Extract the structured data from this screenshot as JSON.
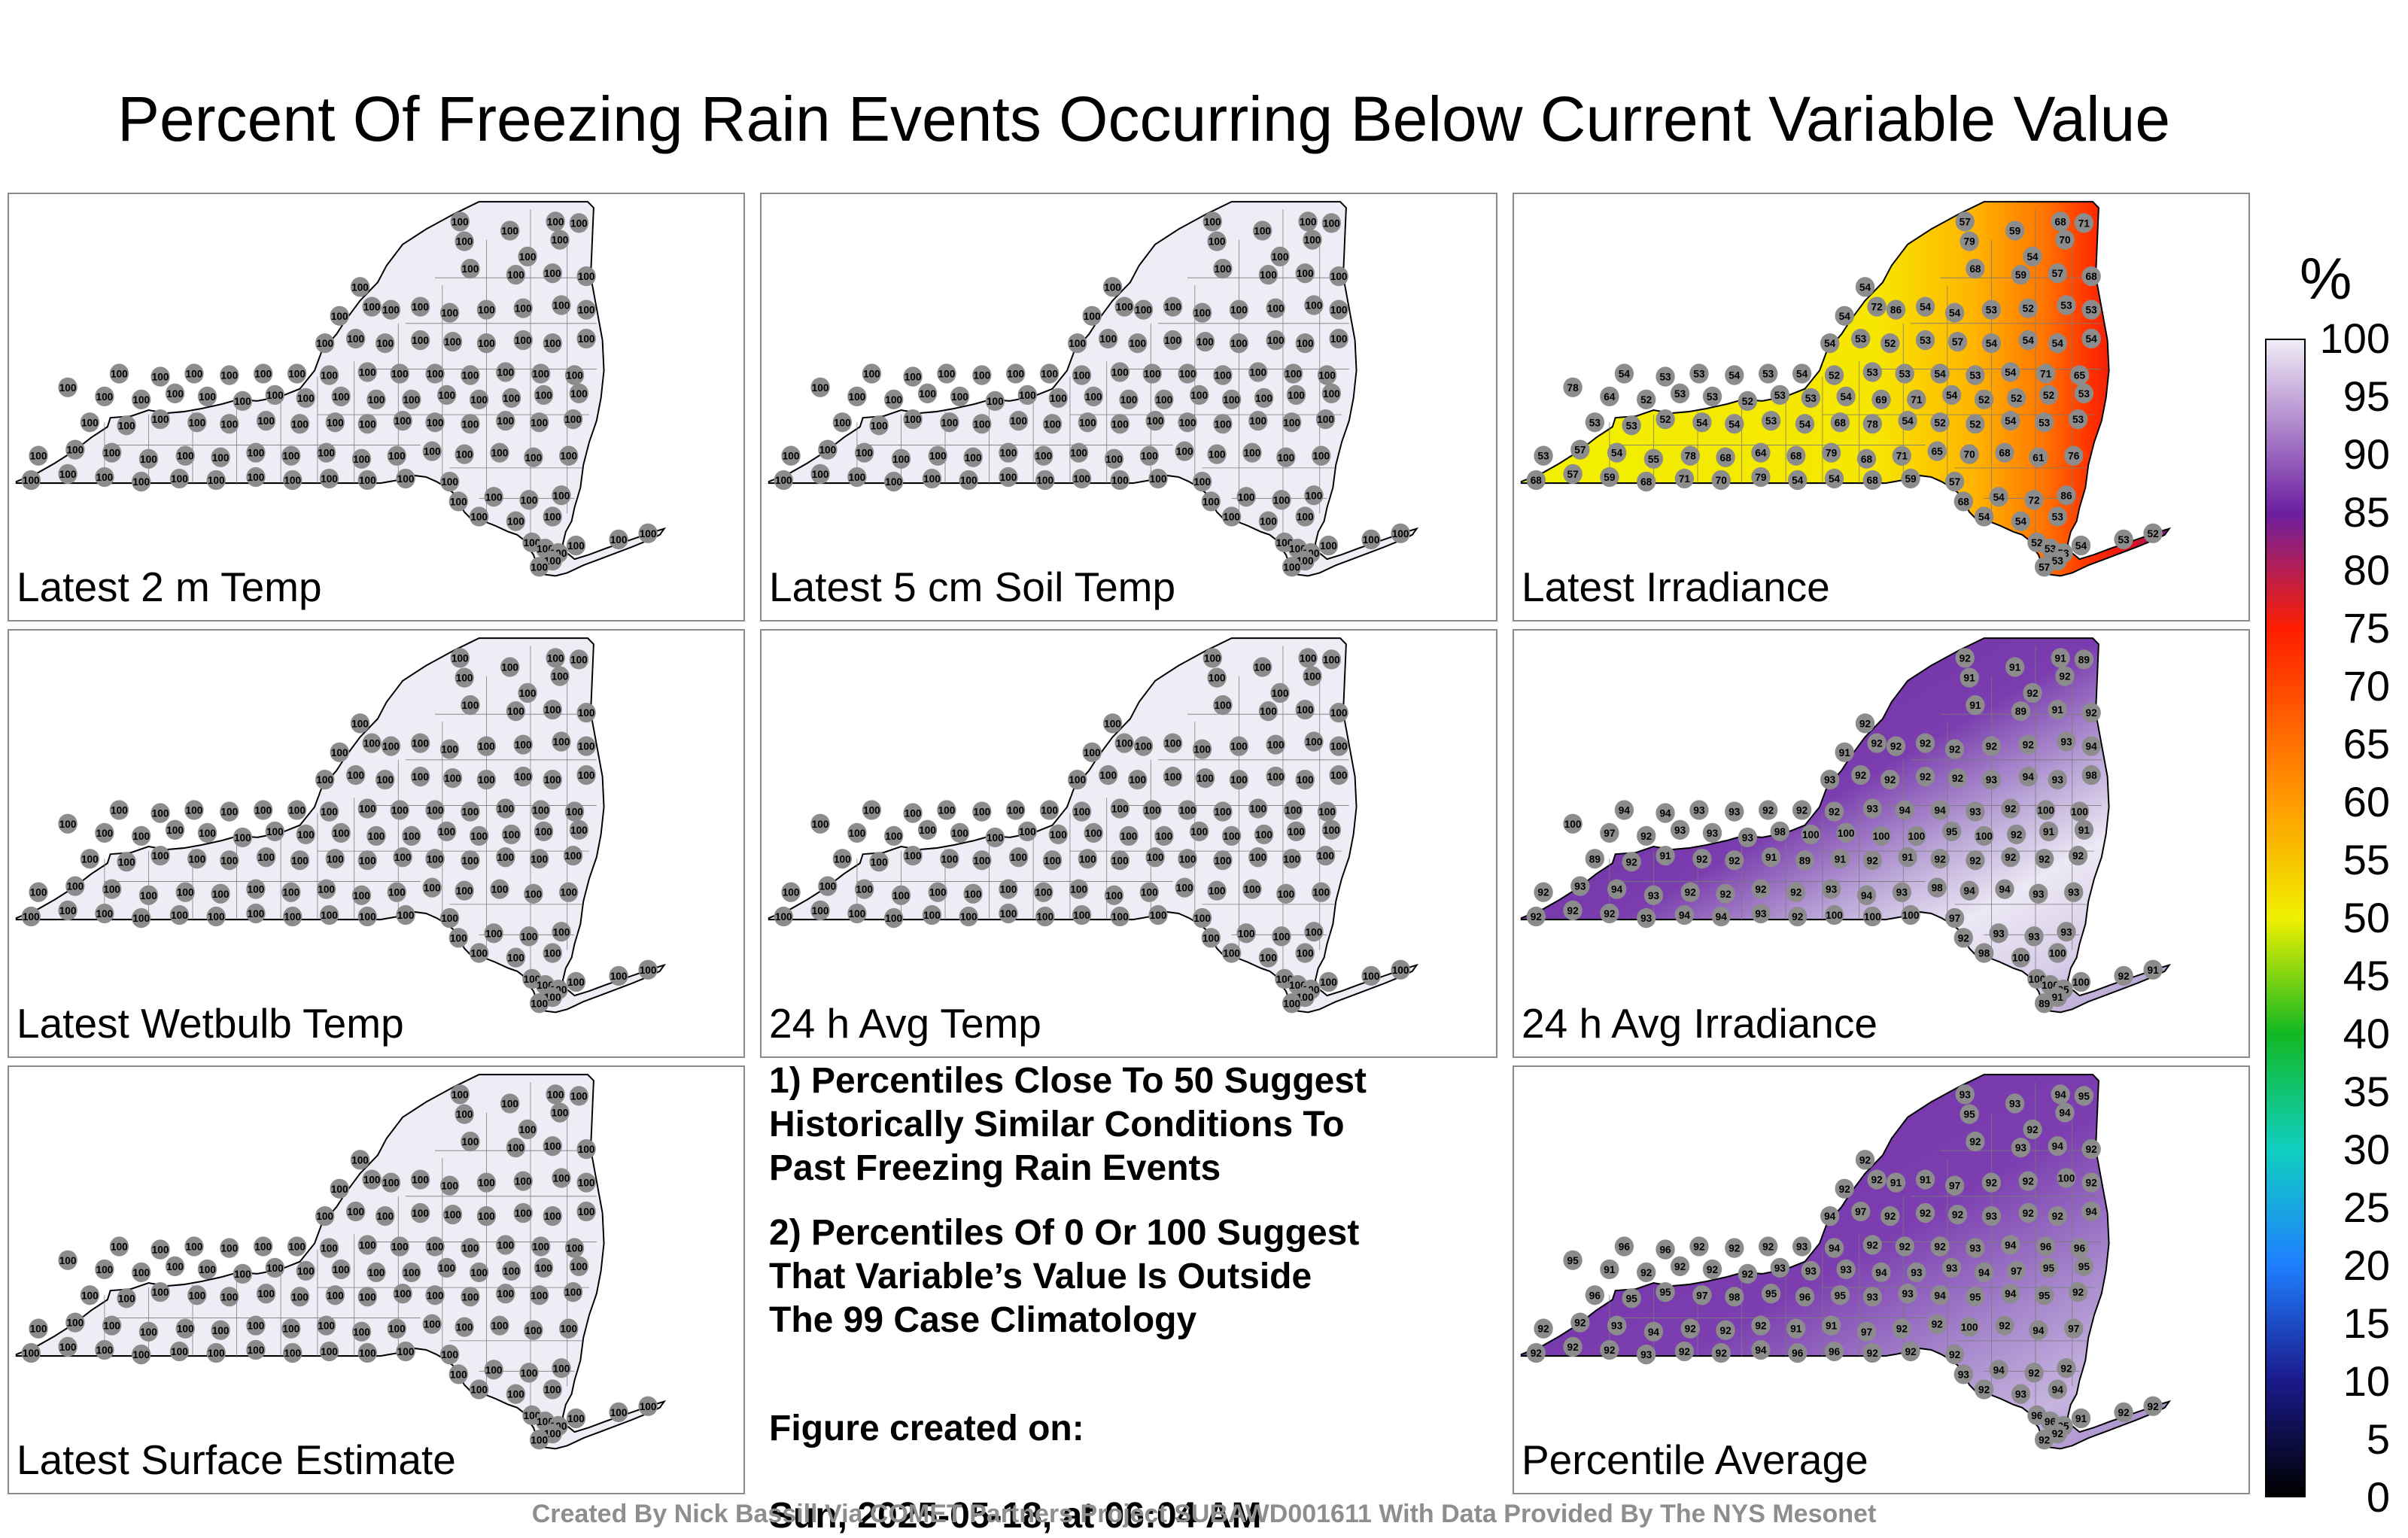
{
  "title": "Percent Of Freezing Rain Events Occurring Below Current Variable Value",
  "panels": [
    {
      "label": "Latest 2 m Temp",
      "fill": "uniform",
      "values": [
        "100"
      ]
    },
    {
      "label": "Latest 5 cm Soil Temp",
      "fill": "uniform",
      "values": [
        "100"
      ]
    },
    {
      "label": "Latest Irradiance",
      "fill": "irradiance",
      "values": [
        "57",
        "59",
        "68",
        "71",
        "70",
        "79",
        "54",
        "54",
        "68",
        "59",
        "57",
        "68",
        "54",
        "72",
        "86",
        "54",
        "54",
        "53",
        "52",
        "53",
        "53",
        "54",
        "53",
        "52",
        "53",
        "57",
        "54",
        "54",
        "54",
        "54",
        "54",
        "53",
        "53",
        "54",
        "53",
        "54",
        "52",
        "53",
        "53",
        "54",
        "53",
        "54",
        "71",
        "65",
        "78",
        "64",
        "52",
        "53",
        "53",
        "52",
        "53",
        "53",
        "54",
        "69",
        "71",
        "54",
        "52",
        "52",
        "52",
        "53",
        "53",
        "53",
        "52",
        "54",
        "54",
        "53",
        "54",
        "68",
        "78",
        "54",
        "52",
        "52",
        "54",
        "53",
        "53",
        "53",
        "57",
        "54",
        "55",
        "78",
        "68",
        "64",
        "68",
        "79",
        "68",
        "71",
        "65",
        "70",
        "68",
        "61",
        "76",
        "68"
      ]
    },
    {
      "label": "Latest Wetbulb Temp",
      "fill": "uniform",
      "values": [
        "100"
      ]
    },
    {
      "label": "24 h Avg Temp",
      "fill": "uniform",
      "values": [
        "100"
      ]
    },
    {
      "label": "24 h Avg Irradiance",
      "fill": "avg-irradiance",
      "values": [
        "92",
        "91",
        "91",
        "89",
        "92",
        "91",
        "92",
        "92",
        "91",
        "89",
        "91",
        "92",
        "91",
        "92",
        "92",
        "92",
        "92",
        "92",
        "92",
        "93",
        "94",
        "93",
        "92",
        "92",
        "92",
        "92",
        "93",
        "94",
        "93",
        "98",
        "94",
        "94",
        "93",
        "93",
        "92",
        "92",
        "92",
        "93",
        "94",
        "94",
        "93",
        "92",
        "100",
        "100",
        "100",
        "97",
        "92",
        "93",
        "93",
        "93",
        "98",
        "100",
        "100",
        "100",
        "100",
        "95",
        "100"
      ]
    },
    {
      "label": "Latest Surface Estimate",
      "fill": "uniform",
      "values": [
        "100"
      ]
    },
    {
      "label": "Percentile Average",
      "fill": "average",
      "values": [
        "93",
        "93",
        "94",
        "95",
        "94",
        "95",
        "92",
        "92",
        "92",
        "93",
        "94",
        "92",
        "92",
        "92",
        "91",
        "91",
        "97",
        "92",
        "92",
        "100",
        "92",
        "94",
        "97",
        "92",
        "92",
        "92",
        "93",
        "92",
        "92",
        "94",
        "96",
        "96",
        "92",
        "92",
        "92",
        "93",
        "94",
        "92",
        "92",
        "92",
        "93",
        "94",
        "96",
        "96",
        "95",
        "91",
        "92",
        "92",
        "92",
        "92",
        "93",
        "93",
        "93",
        "94",
        "93",
        "93",
        "94",
        "97",
        "95",
        "95",
        "96",
        "95",
        "95",
        "97",
        "98",
        "95",
        "96",
        "95"
      ]
    }
  ],
  "notes": {
    "note1": "1) Percentiles Close To 50 Suggest\nHistorically Similar Conditions To\nPast Freezing Rain Events",
    "note2": "2) Percentiles Of 0 Or 100 Suggest\nThat Variable’s Value Is Outside\nThe 99 Case Climatology",
    "created_label": "Figure created on:",
    "created_value": "Sun, 2025-05-18, at 06:04 AM"
  },
  "credit": "Created By Nick Bassill Via COMET Partners Project SUBAWD001611 With Data Provided By The NYS Mesonet",
  "colorbar": {
    "unit": "%",
    "ticks": [
      "100",
      "95",
      "90",
      "85",
      "80",
      "75",
      "70",
      "65",
      "60",
      "55",
      "50",
      "45",
      "40",
      "35",
      "30",
      "25",
      "20",
      "15",
      "10",
      "5",
      "0"
    ],
    "colors": {
      "0": "#000000",
      "10": "#1a1a8c",
      "20": "#1f7fff",
      "30": "#10cfc0",
      "40": "#12b823",
      "50": "#f0f000",
      "60": "#ff9a00",
      "75": "#ff1e00",
      "85": "#6c1fa0",
      "100": "#f0ecf6"
    }
  }
}
